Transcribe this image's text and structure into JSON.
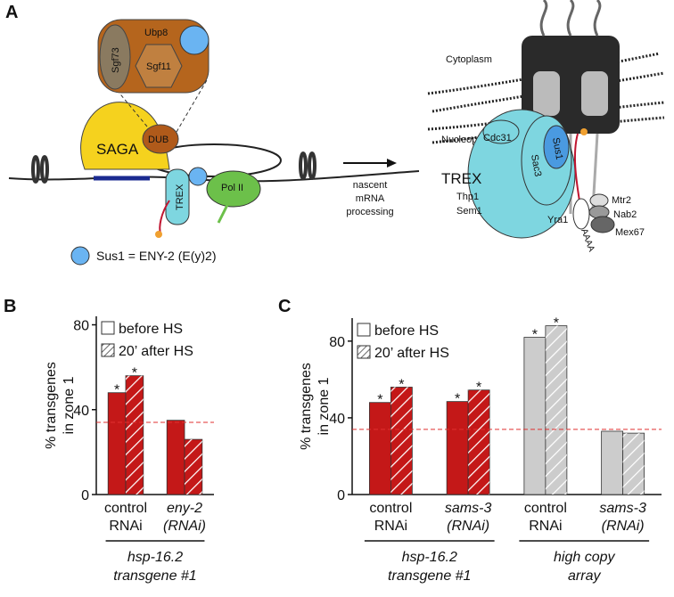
{
  "panel_a": {
    "letter": "A",
    "ubp8": "Ubp8",
    "sgf73": "Sgf73",
    "sgf11": "Sgf11",
    "saga": "SAGA",
    "dub": "DUB",
    "trex_left": "TREX",
    "pol2": "Pol II",
    "sus1_key": "Sus1 = ENY-2 (E(y)2)",
    "arrow_label": [
      "nascent",
      "mRNA",
      "processing"
    ],
    "cytoplasm": "Cytoplasm",
    "nucleoplasm": "Nucleoplasm",
    "cdc31": "Cdc31",
    "sus1": "Sus1",
    "sac3": "Sac3",
    "trex_right": "TREX",
    "thp1": "Thp1",
    "sem1": "Sem1",
    "yra1": "Yra1",
    "mtr2": "Mtr2",
    "nab2": "Nab2",
    "mex67": "Mex67",
    "polya": "AAAA"
  },
  "chart_data": [
    {
      "type": "bar",
      "panel": "B",
      "y_label": [
        "% transgenes",
        "in zone 1"
      ],
      "categories": [
        [
          "control",
          "RNAi"
        ],
        [
          "eny-2",
          "(RNAi)"
        ]
      ],
      "italic_categories": [
        false,
        true
      ],
      "category_colors": [
        "#c41818",
        "#c41818"
      ],
      "series": [
        {
          "name": "before HS",
          "pattern": "solid",
          "values": [
            48,
            35
          ],
          "markers": [
            "*",
            null
          ]
        },
        {
          "name": "20’ after HS",
          "pattern": "hatch",
          "values": [
            56,
            26
          ],
          "markers": [
            "*",
            null
          ]
        }
      ],
      "groups": [
        [
          "hsp-16.2",
          "transgene #1"
        ]
      ],
      "reference_line": 34,
      "reference_color": "#e03030",
      "ylim": [
        0,
        84
      ],
      "yticks": [
        0,
        40,
        80
      ],
      "legend": "upper left"
    },
    {
      "type": "bar",
      "panel": "C",
      "y_label": [
        "% transgenes",
        "in zone 1"
      ],
      "categories": [
        [
          "control",
          "RNAi"
        ],
        [
          "sams-3",
          "(RNAi)"
        ],
        [
          "control",
          "RNAi"
        ],
        [
          "sams-3",
          "(RNAi)"
        ]
      ],
      "italic_categories": [
        false,
        true,
        false,
        true
      ],
      "category_colors": [
        "#c41818",
        "#c41818",
        "#cccccc",
        "#cccccc"
      ],
      "series": [
        {
          "name": "before HS",
          "pattern": "solid",
          "values": [
            48,
            48.5,
            82,
            33
          ],
          "markers": [
            "*",
            "*",
            "*",
            null
          ]
        },
        {
          "name": "20’ after HS",
          "pattern": "hatch",
          "values": [
            56,
            54.5,
            88,
            32
          ],
          "markers": [
            "*",
            "*",
            "*",
            null
          ]
        }
      ],
      "groups": [
        [
          "hsp-16.2",
          "transgene #1"
        ],
        [
          "high copy",
          "array"
        ]
      ],
      "reference_line": 34,
      "reference_color": "#e03030",
      "ylim": [
        0,
        92
      ],
      "yticks": [
        0,
        40,
        80
      ],
      "legend": "upper left"
    }
  ]
}
